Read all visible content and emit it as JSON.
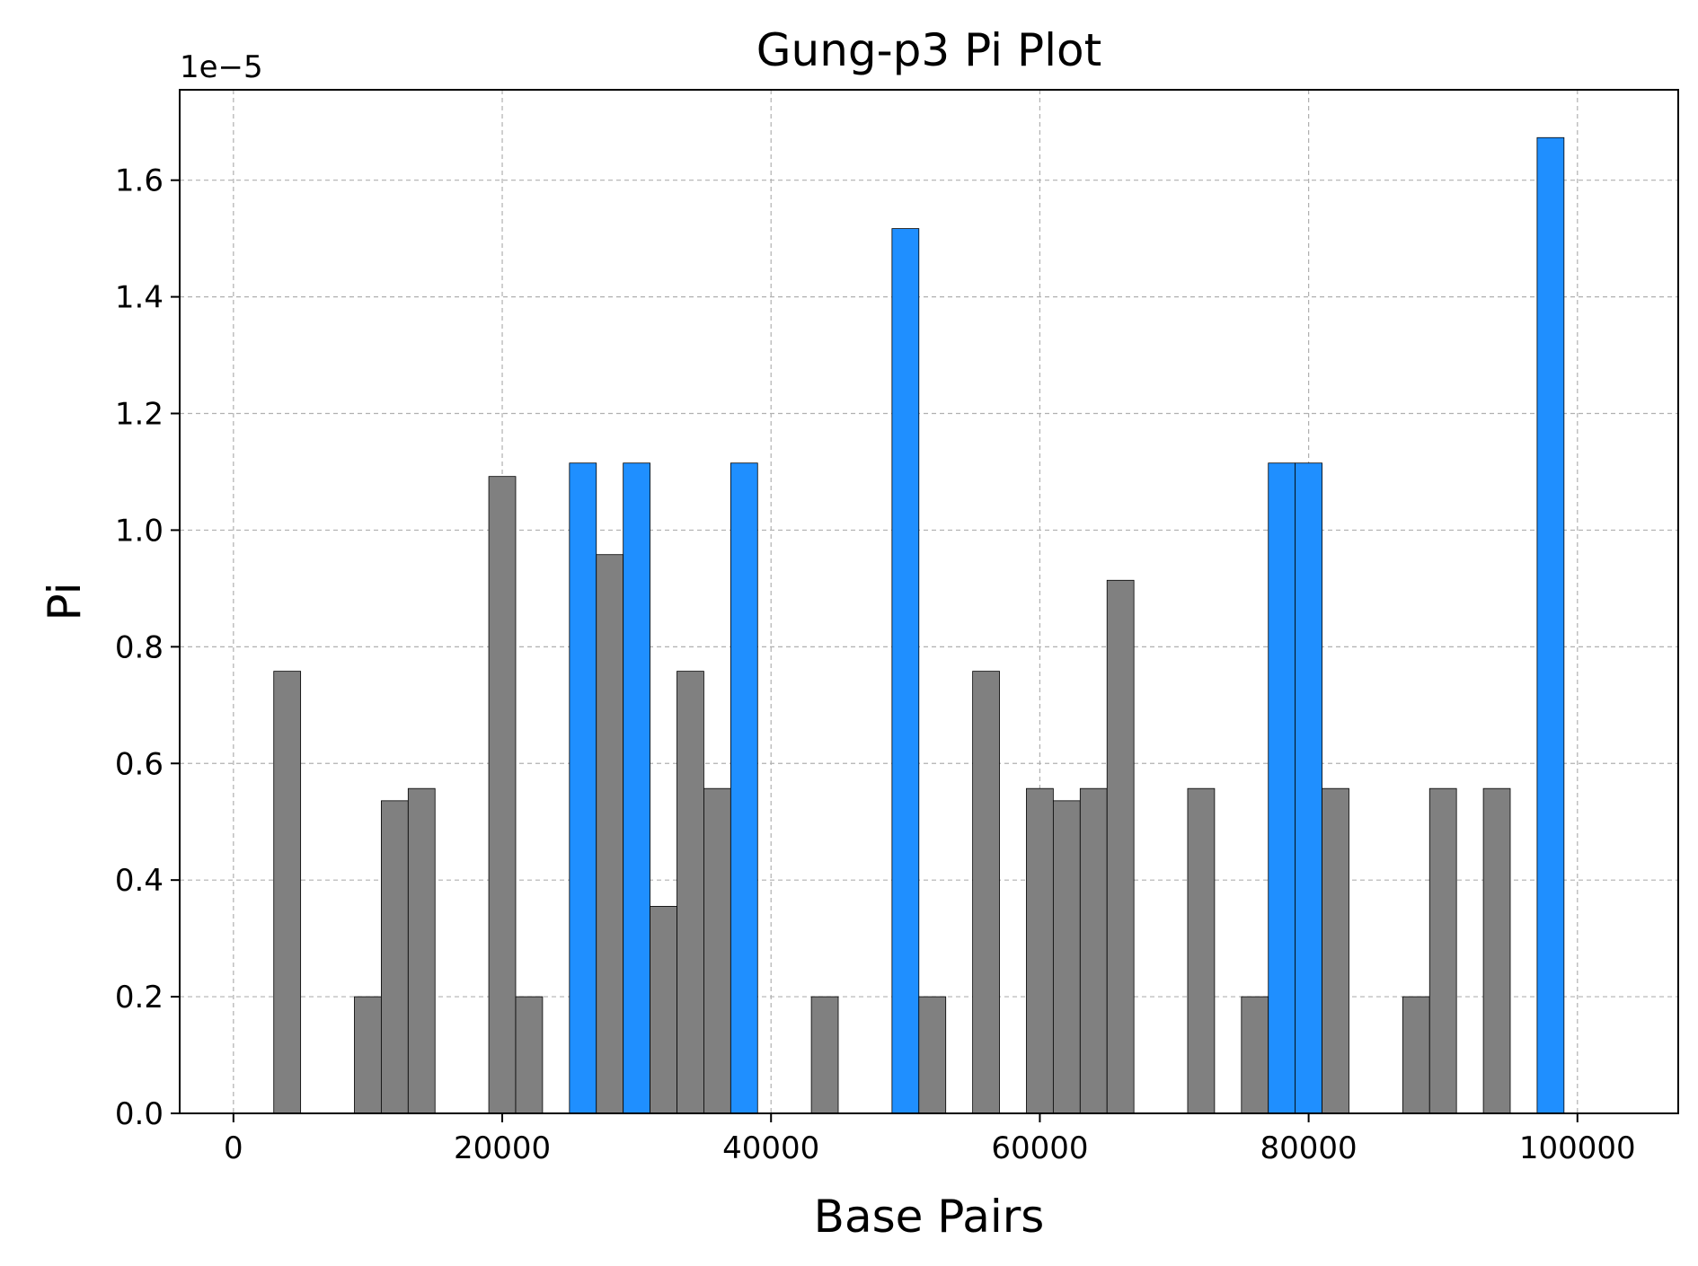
{
  "chart_data": {
    "type": "bar",
    "title": "Gung-p3 Pi Plot",
    "xlabel": "Base Pairs",
    "ylabel": "Pi",
    "y_offset_label": "1e−5",
    "y_scale_factor": 1e-05,
    "xlim": [
      -4000,
      107500
    ],
    "ylim": [
      0,
      1.755e-05
    ],
    "grid": true,
    "bin_width": 2000,
    "x_ticks": [
      0,
      20000,
      40000,
      60000,
      80000,
      100000
    ],
    "x_tick_labels": [
      "0",
      "20000",
      "40000",
      "60000",
      "80000",
      "100000"
    ],
    "y_ticks": [
      0,
      2e-06,
      4e-06,
      6e-06,
      8e-06,
      1e-05,
      1.2e-05,
      1.4e-05,
      1.6e-05
    ],
    "y_tick_labels": [
      "0.0",
      "0.2",
      "0.4",
      "0.6",
      "0.8",
      "1.0",
      "1.2",
      "1.4",
      "1.6"
    ],
    "colors": {
      "normal": "#808080",
      "highlight": "#1f8fff"
    },
    "bars": [
      {
        "x": 4000,
        "value": 7.58e-06,
        "highlight": false
      },
      {
        "x": 10000,
        "value": 2e-06,
        "highlight": false
      },
      {
        "x": 12000,
        "value": 5.36e-06,
        "highlight": false
      },
      {
        "x": 14000,
        "value": 5.57e-06,
        "highlight": false
      },
      {
        "x": 20000,
        "value": 1.092e-05,
        "highlight": false
      },
      {
        "x": 22000,
        "value": 2e-06,
        "highlight": false
      },
      {
        "x": 26000,
        "value": 1.115e-05,
        "highlight": true
      },
      {
        "x": 28000,
        "value": 9.58e-06,
        "highlight": false
      },
      {
        "x": 30000,
        "value": 1.115e-05,
        "highlight": true
      },
      {
        "x": 32000,
        "value": 3.55e-06,
        "highlight": false
      },
      {
        "x": 34000,
        "value": 7.58e-06,
        "highlight": false
      },
      {
        "x": 36000,
        "value": 5.57e-06,
        "highlight": false
      },
      {
        "x": 38000,
        "value": 1.115e-05,
        "highlight": true
      },
      {
        "x": 44000,
        "value": 2e-06,
        "highlight": false
      },
      {
        "x": 50000,
        "value": 1.517e-05,
        "highlight": true
      },
      {
        "x": 52000,
        "value": 2e-06,
        "highlight": false
      },
      {
        "x": 56000,
        "value": 7.58e-06,
        "highlight": false
      },
      {
        "x": 60000,
        "value": 5.57e-06,
        "highlight": false
      },
      {
        "x": 62000,
        "value": 5.36e-06,
        "highlight": false
      },
      {
        "x": 64000,
        "value": 5.57e-06,
        "highlight": false
      },
      {
        "x": 66000,
        "value": 9.14e-06,
        "highlight": false
      },
      {
        "x": 72000,
        "value": 5.57e-06,
        "highlight": false
      },
      {
        "x": 76000,
        "value": 2e-06,
        "highlight": false
      },
      {
        "x": 78000,
        "value": 1.115e-05,
        "highlight": true
      },
      {
        "x": 80000,
        "value": 1.115e-05,
        "highlight": true
      },
      {
        "x": 82000,
        "value": 5.57e-06,
        "highlight": false
      },
      {
        "x": 88000,
        "value": 2e-06,
        "highlight": false
      },
      {
        "x": 90000,
        "value": 5.57e-06,
        "highlight": false
      },
      {
        "x": 94000,
        "value": 5.57e-06,
        "highlight": false
      },
      {
        "x": 98000,
        "value": 1.673e-05,
        "highlight": true
      }
    ]
  }
}
